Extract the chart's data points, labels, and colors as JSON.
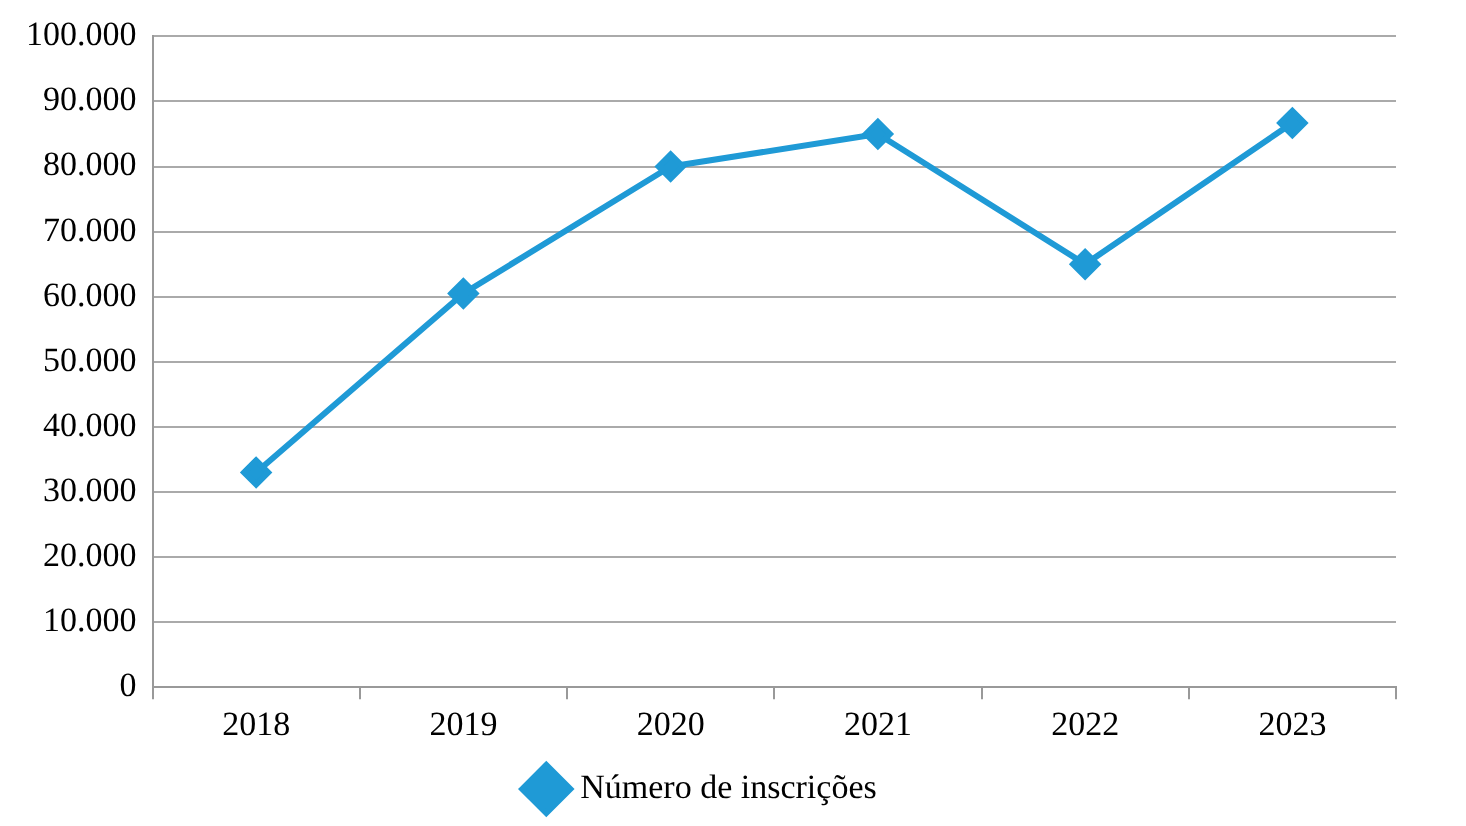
{
  "chart_data": {
    "type": "line",
    "categories": [
      "2018",
      "2019",
      "2020",
      "2021",
      "2022",
      "2023"
    ],
    "series": [
      {
        "name": "Número de inscrições",
        "color": "#1f9ad6",
        "values": [
          33000,
          60500,
          80000,
          85000,
          65000,
          86700
        ]
      }
    ],
    "ylim": [
      0,
      100000
    ],
    "yticks": [
      {
        "value": 0,
        "label": "0"
      },
      {
        "value": 10000,
        "label": "10.000"
      },
      {
        "value": 20000,
        "label": "20.000"
      },
      {
        "value": 30000,
        "label": "30.000"
      },
      {
        "value": 40000,
        "label": "40.000"
      },
      {
        "value": 50000,
        "label": "50.000"
      },
      {
        "value": 60000,
        "label": "60.000"
      },
      {
        "value": 70000,
        "label": "70.000"
      },
      {
        "value": 80000,
        "label": "80.000"
      },
      {
        "value": 90000,
        "label": "90.000"
      },
      {
        "value": 100000,
        "label": "100.000"
      }
    ],
    "grid": "y",
    "legend": "bottom",
    "marker": "diamond",
    "line_style": "solid"
  }
}
